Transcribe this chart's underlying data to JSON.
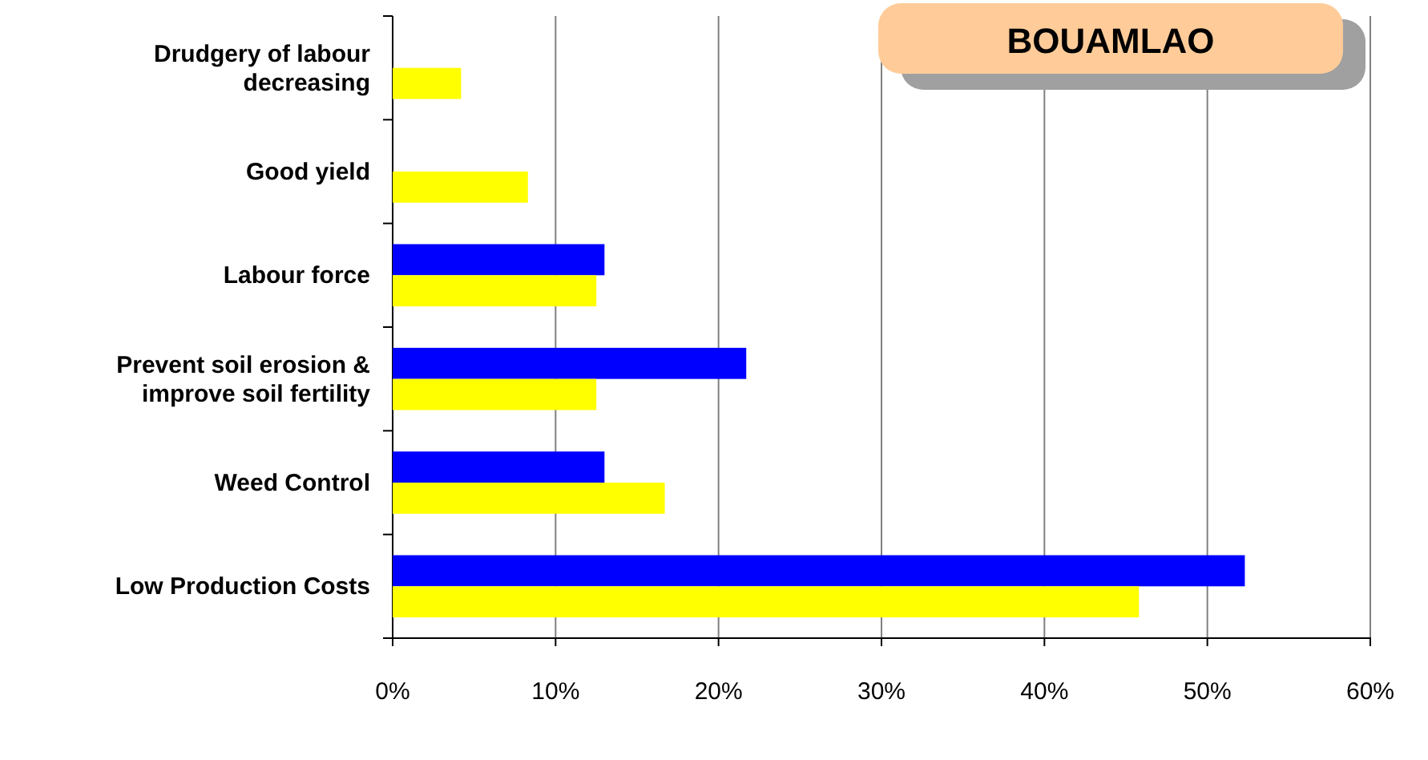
{
  "chart_data": {
    "type": "bar",
    "orientation": "horizontal",
    "title": "BOUAMLAO",
    "categories": [
      "Drudgery of labour decreasing",
      "Good yield",
      "Labour force",
      "Prevent soil erosion & improve soil fertility",
      "Weed Control",
      "Low Production Costs"
    ],
    "series": [
      {
        "color": "#0000ff",
        "values": [
          null,
          null,
          13.0,
          21.7,
          13.0,
          52.3
        ]
      },
      {
        "color": "#ffff00",
        "values": [
          4.2,
          8.3,
          12.5,
          12.5,
          16.7,
          45.8
        ]
      }
    ],
    "xlim": [
      0,
      60
    ],
    "xticks": [
      {
        "value": 0,
        "label": "0%"
      },
      {
        "value": 10,
        "label": "10%"
      },
      {
        "value": 20,
        "label": "20%"
      },
      {
        "value": 30,
        "label": "30%"
      },
      {
        "value": 40,
        "label": "40%"
      },
      {
        "value": 50,
        "label": "50%"
      },
      {
        "value": 60,
        "label": "60%"
      }
    ],
    "grid": "x"
  }
}
